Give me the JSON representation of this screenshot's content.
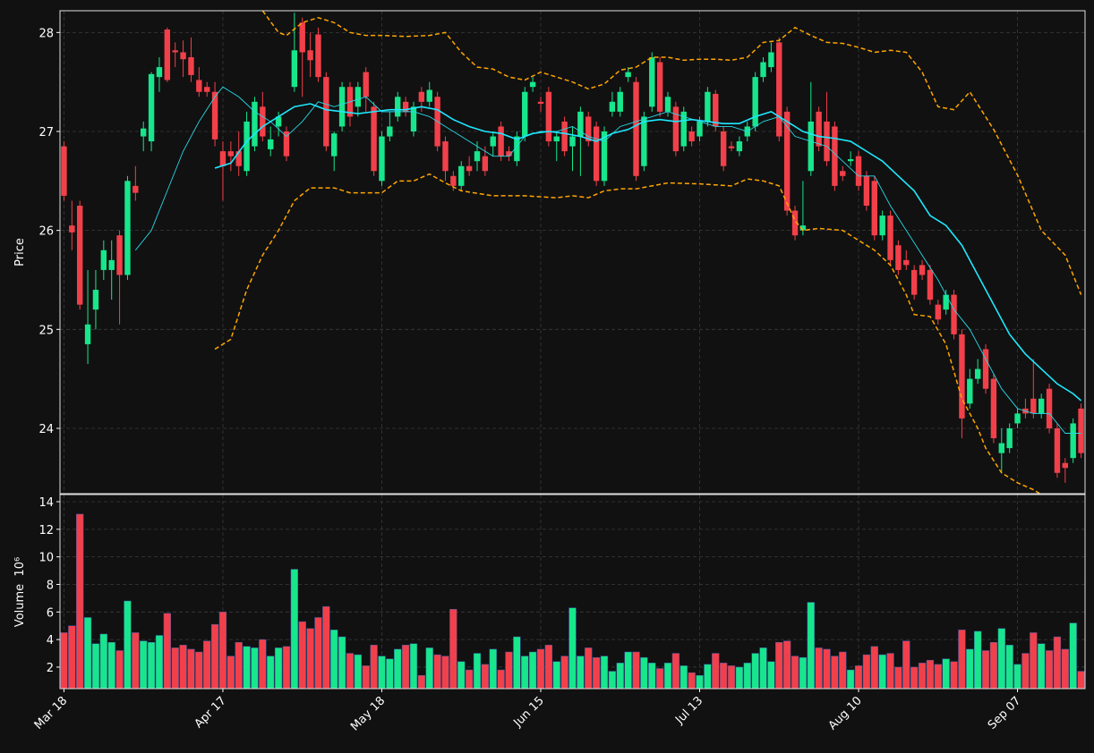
{
  "chart_data": {
    "type": "candlestick",
    "categories": [
      "Mar 18",
      null,
      null,
      null,
      null,
      null,
      null,
      null,
      null,
      null,
      null,
      null,
      null,
      null,
      null,
      null,
      null,
      null,
      null,
      null,
      "Apr 17",
      null,
      null,
      null,
      null,
      null,
      null,
      null,
      null,
      null,
      null,
      null,
      null,
      null,
      null,
      null,
      null,
      null,
      null,
      null,
      "May 18",
      null,
      null,
      null,
      null,
      null,
      null,
      null,
      null,
      null,
      null,
      null,
      null,
      null,
      null,
      null,
      null,
      null,
      null,
      null,
      "Jun 15",
      null,
      null,
      null,
      null,
      null,
      null,
      null,
      null,
      null,
      null,
      null,
      null,
      null,
      null,
      null,
      null,
      null,
      null,
      null,
      "Jul 13",
      null,
      null,
      null,
      null,
      null,
      null,
      null,
      null,
      null,
      null,
      null,
      null,
      null,
      null,
      null,
      null,
      null,
      null,
      null,
      "Aug 10",
      null,
      null,
      null,
      null,
      null,
      null,
      null,
      null,
      null,
      null,
      null,
      null,
      null,
      null,
      null,
      null,
      null,
      null,
      null,
      "Sep 07",
      null,
      null,
      null,
      null,
      null,
      null,
      null,
      null
    ],
    "open": [
      26.85,
      26.05,
      26.25,
      24.85,
      25.2,
      25.6,
      25.6,
      25.95,
      25.55,
      26.45,
      26.95,
      26.9,
      27.55,
      28.03,
      27.82,
      27.8,
      27.75,
      27.52,
      27.45,
      27.4,
      26.8,
      26.8,
      26.8,
      26.6,
      26.85,
      27.25,
      26.82,
      27.05,
      27.0,
      27.45,
      28.1,
      27.82,
      27.98,
      27.55,
      26.75,
      27.05,
      27.45,
      27.25,
      27.6,
      27.25,
      26.5,
      26.95,
      27.15,
      27.3,
      27.0,
      27.4,
      27.3,
      27.35,
      26.9,
      26.55,
      26.45,
      26.65,
      26.7,
      26.75,
      26.85,
      27.05,
      26.8,
      26.7,
      26.95,
      27.45,
      27.3,
      27.4,
      26.9,
      27.1,
      26.85,
      26.95,
      27.15,
      27.05,
      26.5,
      27.2,
      27.2,
      27.55,
      27.5,
      26.65,
      27.25,
      27.7,
      27.2,
      27.25,
      26.85,
      27.0,
      26.95,
      27.1,
      27.38,
      27.0,
      26.85,
      26.8,
      26.95,
      27.05,
      27.55,
      27.65,
      27.9,
      27.2,
      26.2,
      26.0,
      26.6,
      27.2,
      27.1,
      27.05,
      26.6,
      26.7,
      26.75,
      26.55,
      26.5,
      25.95,
      26.15,
      25.85,
      25.7,
      25.6,
      25.65,
      25.6,
      25.25,
      25.2,
      25.35,
      24.95,
      24.25,
      24.5,
      24.8,
      24.5,
      23.75,
      23.8,
      24.05,
      24.2,
      24.3,
      24.15,
      24.4,
      24.0,
      23.65,
      23.7,
      24.2
    ],
    "high": [
      26.9,
      26.3,
      26.3,
      25.6,
      25.6,
      25.9,
      25.9,
      26.0,
      26.55,
      26.65,
      27.1,
      27.6,
      27.75,
      28.05,
      27.9,
      27.92,
      27.95,
      27.65,
      27.5,
      27.5,
      26.9,
      26.9,
      27.0,
      27.2,
      27.35,
      27.4,
      27.05,
      27.2,
      27.05,
      28.2,
      28.15,
      28.0,
      28.05,
      27.6,
      27.0,
      27.5,
      27.5,
      27.5,
      27.65,
      27.3,
      27.0,
      27.2,
      27.4,
      27.35,
      27.3,
      27.45,
      27.5,
      27.4,
      26.95,
      26.6,
      26.7,
      26.75,
      26.9,
      26.85,
      27.0,
      27.1,
      26.85,
      27.0,
      27.45,
      27.55,
      27.35,
      27.45,
      27.0,
      27.15,
      27.05,
      27.25,
      27.2,
      27.1,
      27.05,
      27.4,
      27.45,
      27.65,
      27.55,
      27.2,
      27.8,
      27.75,
      27.4,
      27.3,
      27.25,
      27.05,
      27.15,
      27.45,
      27.42,
      27.05,
      26.9,
      26.95,
      27.1,
      27.6,
      27.75,
      27.9,
      27.95,
      27.25,
      26.25,
      26.5,
      27.5,
      27.25,
      27.4,
      27.1,
      26.65,
      26.8,
      26.8,
      26.6,
      26.55,
      26.2,
      26.2,
      25.9,
      25.8,
      25.65,
      25.7,
      25.65,
      25.3,
      25.4,
      25.4,
      25.0,
      24.6,
      24.7,
      24.85,
      24.55,
      24.0,
      24.05,
      24.2,
      24.3,
      24.7,
      24.35,
      24.45,
      24.05,
      23.7,
      24.1,
      24.25
    ],
    "low": [
      26.3,
      25.8,
      25.2,
      24.65,
      25.0,
      25.5,
      25.3,
      25.05,
      25.5,
      26.3,
      26.8,
      26.8,
      27.4,
      27.5,
      27.65,
      27.55,
      27.5,
      27.35,
      27.35,
      26.85,
      26.3,
      26.6,
      26.55,
      26.55,
      26.8,
      26.9,
      26.75,
      26.95,
      26.7,
      27.4,
      27.35,
      27.55,
      27.5,
      26.8,
      26.6,
      27.0,
      27.05,
      27.15,
      27.2,
      26.55,
      26.45,
      26.9,
      27.1,
      27.15,
      26.95,
      27.2,
      27.25,
      26.8,
      26.5,
      26.4,
      26.4,
      26.55,
      26.6,
      26.55,
      26.75,
      26.7,
      26.7,
      26.65,
      26.9,
      27.4,
      27.2,
      26.85,
      26.7,
      26.75,
      26.6,
      26.55,
      26.85,
      26.45,
      26.45,
      27.15,
      27.15,
      27.5,
      26.5,
      26.6,
      27.2,
      27.15,
      27.15,
      26.75,
      26.8,
      26.85,
      26.9,
      27.05,
      27.0,
      26.6,
      26.8,
      26.75,
      26.9,
      27.0,
      27.5,
      27.6,
      26.9,
      26.15,
      25.9,
      25.95,
      26.55,
      26.8,
      26.65,
      26.4,
      26.5,
      26.65,
      26.4,
      26.2,
      25.9,
      25.9,
      25.65,
      25.55,
      25.6,
      25.3,
      25.5,
      25.25,
      25.05,
      25.15,
      24.9,
      23.9,
      24.2,
      24.45,
      24.35,
      23.85,
      23.55,
      23.75,
      24.0,
      24.1,
      24.1,
      24.1,
      23.95,
      23.5,
      23.45,
      23.65,
      23.7
    ],
    "close": [
      26.35,
      25.98,
      25.25,
      25.05,
      25.4,
      25.8,
      25.7,
      25.55,
      26.5,
      26.38,
      27.03,
      27.58,
      27.65,
      27.52,
      27.8,
      27.73,
      27.57,
      27.4,
      27.4,
      26.92,
      26.65,
      26.75,
      26.65,
      27.1,
      27.3,
      26.95,
      26.92,
      27.15,
      26.75,
      27.82,
      27.8,
      27.72,
      27.55,
      26.85,
      26.98,
      27.45,
      27.15,
      27.45,
      27.35,
      26.6,
      26.95,
      27.05,
      27.35,
      27.2,
      27.25,
      27.3,
      27.42,
      26.85,
      26.6,
      26.45,
      26.65,
      26.6,
      26.8,
      26.6,
      26.95,
      26.75,
      26.75,
      26.95,
      27.4,
      27.5,
      27.28,
      26.9,
      26.95,
      26.8,
      26.95,
      27.2,
      26.9,
      26.5,
      27.0,
      27.3,
      27.4,
      27.6,
      26.55,
      27.15,
      27.75,
      27.2,
      27.35,
      26.8,
      27.2,
      26.9,
      27.1,
      27.4,
      27.05,
      26.65,
      26.83,
      26.9,
      27.05,
      27.55,
      27.7,
      27.8,
      26.95,
      26.2,
      25.95,
      26.05,
      27.1,
      26.85,
      26.7,
      26.45,
      26.55,
      26.72,
      26.45,
      26.25,
      25.95,
      26.15,
      25.7,
      25.6,
      25.65,
      25.35,
      25.55,
      25.3,
      25.1,
      25.35,
      24.95,
      24.1,
      24.5,
      24.6,
      24.4,
      23.9,
      23.85,
      24.0,
      24.15,
      24.15,
      24.15,
      24.3,
      24.0,
      23.55,
      23.6,
      24.05,
      23.75
    ],
    "up_color": "#17e68c",
    "down_color": "#f2404a",
    "ylabel": "Price",
    "ylim": [
      23.34,
      28.22
    ],
    "yticks": [
      24,
      25,
      26,
      27,
      28
    ],
    "grid": true,
    "overlays": [
      {
        "color": "#26d9e6",
        "width": 0.9,
        "dashed": false,
        "x": [
          9,
          11,
          13,
          15,
          17,
          19,
          20,
          22,
          24,
          26,
          28,
          30,
          32,
          34,
          36,
          38,
          40,
          42,
          44,
          46,
          48,
          50,
          52,
          54,
          56,
          58,
          60,
          62,
          64,
          66,
          68,
          70,
          72,
          74,
          76,
          78,
          80,
          82,
          84,
          86,
          88,
          90,
          92,
          94,
          96,
          98,
          100,
          102,
          104,
          106,
          108,
          110,
          112,
          114,
          116,
          118,
          120,
          122,
          124,
          126,
          128
        ],
        "values": [
          25.8,
          26.0,
          26.4,
          26.8,
          27.1,
          27.35,
          27.45,
          27.35,
          27.2,
          27.1,
          26.95,
          27.1,
          27.3,
          27.25,
          27.3,
          27.35,
          27.2,
          27.2,
          27.2,
          27.15,
          27.05,
          26.95,
          26.85,
          26.75,
          26.75,
          26.95,
          27.0,
          27.0,
          27.05,
          26.95,
          26.9,
          27.05,
          27.1,
          27.15,
          27.2,
          27.15,
          27.1,
          27.05,
          27.05,
          27.0,
          27.1,
          27.15,
          26.95,
          26.9,
          26.85,
          26.7,
          26.55,
          26.55,
          26.25,
          26.0,
          25.75,
          25.5,
          25.2,
          25.0,
          24.7,
          24.4,
          24.2,
          24.15,
          24.15,
          23.95,
          23.95
        ]
      },
      {
        "color": "#1ee8ff",
        "width": 1.6,
        "dashed": false,
        "x": [
          19,
          21,
          23,
          25,
          27,
          29,
          31,
          33,
          35,
          37,
          39,
          41,
          43,
          45,
          47,
          49,
          51,
          53,
          55,
          57,
          59,
          61,
          63,
          65,
          67,
          69,
          71,
          73,
          75,
          77,
          79,
          81,
          83,
          85,
          87,
          89,
          91,
          93,
          95,
          97,
          99,
          101,
          103,
          105,
          107,
          109,
          111,
          113,
          115,
          117,
          119,
          121,
          123,
          125,
          127,
          128
        ],
        "values": [
          26.63,
          26.68,
          26.9,
          27.05,
          27.15,
          27.25,
          27.28,
          27.22,
          27.2,
          27.18,
          27.2,
          27.22,
          27.22,
          27.25,
          27.22,
          27.12,
          27.05,
          27.0,
          26.98,
          26.92,
          26.98,
          27.0,
          26.98,
          26.95,
          26.9,
          26.98,
          27.02,
          27.1,
          27.12,
          27.1,
          27.12,
          27.1,
          27.08,
          27.08,
          27.15,
          27.2,
          27.1,
          27.0,
          26.95,
          26.93,
          26.9,
          26.8,
          26.7,
          26.55,
          26.4,
          26.15,
          26.05,
          25.85,
          25.55,
          25.25,
          24.95,
          24.75,
          24.6,
          24.45,
          24.35,
          24.28
        ]
      },
      {
        "color": "#ffa500",
        "width": 1.5,
        "dashed": true,
        "x": [
          25,
          27,
          28,
          30,
          32,
          34,
          36,
          38,
          40,
          43,
          46,
          48,
          50,
          52,
          54,
          56,
          58,
          60,
          62,
          64,
          66,
          68,
          70,
          72,
          74,
          76,
          78,
          80,
          82,
          84,
          86,
          88,
          90,
          92,
          94,
          96,
          98,
          100,
          102,
          104,
          106,
          108,
          110,
          112,
          114,
          117,
          120,
          123,
          126,
          128
        ],
        "values": [
          28.22,
          28.0,
          27.97,
          28.1,
          28.15,
          28.1,
          28.0,
          27.97,
          27.97,
          27.96,
          27.97,
          28.0,
          27.8,
          27.65,
          27.63,
          27.55,
          27.52,
          27.6,
          27.55,
          27.5,
          27.43,
          27.48,
          27.62,
          27.65,
          27.75,
          27.75,
          27.72,
          27.73,
          27.73,
          27.72,
          27.75,
          27.9,
          27.92,
          28.05,
          27.97,
          27.9,
          27.89,
          27.85,
          27.8,
          27.82,
          27.8,
          27.6,
          27.25,
          27.22,
          27.4,
          27.02,
          26.56,
          26.0,
          25.75,
          25.35
        ]
      },
      {
        "color": "#ffa500",
        "width": 1.5,
        "dashed": true,
        "x": [
          19,
          21,
          23,
          25,
          27,
          29,
          31,
          34,
          36,
          40,
          42,
          44,
          46,
          48,
          50,
          54,
          58,
          62,
          64,
          66,
          68,
          70,
          72,
          76,
          80,
          84,
          86,
          88,
          90,
          92,
          93,
          95,
          98,
          100,
          102,
          104,
          106,
          107,
          109,
          111,
          113,
          115,
          116,
          118,
          120,
          122,
          124
        ],
        "values": [
          24.8,
          24.9,
          25.4,
          25.75,
          26.0,
          26.3,
          26.43,
          26.43,
          26.38,
          26.38,
          26.5,
          26.5,
          26.57,
          26.48,
          26.4,
          26.35,
          26.35,
          26.33,
          26.35,
          26.33,
          26.4,
          26.42,
          26.42,
          26.48,
          26.47,
          26.45,
          26.52,
          26.5,
          26.45,
          26.1,
          26.0,
          26.02,
          26.0,
          25.9,
          25.8,
          25.65,
          25.35,
          25.15,
          25.13,
          24.85,
          24.3,
          24.0,
          23.8,
          23.55,
          23.45,
          23.38,
          23.28
        ]
      }
    ],
    "volume": {
      "ylabel": "Volume  10⁶",
      "ylim": [
        0.44,
        14.52
      ],
      "yticks": [
        2,
        4,
        6,
        8,
        10,
        12,
        14
      ],
      "values": [
        4.5,
        5.0,
        13.1,
        5.6,
        3.7,
        4.4,
        3.8,
        3.2,
        6.8,
        4.5,
        3.9,
        3.8,
        4.3,
        5.9,
        3.4,
        3.6,
        3.3,
        3.1,
        3.9,
        5.1,
        6.0,
        2.8,
        3.8,
        3.5,
        3.4,
        4.0,
        2.8,
        3.4,
        3.5,
        9.1,
        5.3,
        4.8,
        5.6,
        6.4,
        4.7,
        4.2,
        3.0,
        2.9,
        2.1,
        3.6,
        2.8,
        2.6,
        3.3,
        3.6,
        3.7,
        1.4,
        3.4,
        2.9,
        2.8,
        6.2,
        2.4,
        1.8,
        3.0,
        2.2,
        3.3,
        1.8,
        3.1,
        4.2,
        2.8,
        3.1,
        3.3,
        3.6,
        2.4,
        2.8,
        6.3,
        2.8,
        3.4,
        2.7,
        2.8,
        1.7,
        2.3,
        3.1,
        3.1,
        2.7,
        2.3,
        1.9,
        2.3,
        3.0,
        2.1,
        1.6,
        1.4,
        2.2,
        3.0,
        2.3,
        2.1,
        2.0,
        2.3,
        3.0,
        3.4,
        2.4,
        3.8,
        3.9,
        2.8,
        2.7,
        6.7,
        3.4,
        3.3,
        2.8,
        3.1,
        1.8,
        2.1,
        2.9,
        3.5,
        2.9,
        3.0,
        2.0,
        3.9,
        2.0,
        2.3,
        2.5,
        2.2,
        2.6,
        2.4,
        4.7,
        3.3,
        4.6,
        3.2,
        3.8,
        4.8,
        3.6,
        2.2,
        3.0,
        4.5,
        3.7,
        3.2,
        4.2,
        3.3,
        5.2,
        1.7
      ]
    }
  }
}
